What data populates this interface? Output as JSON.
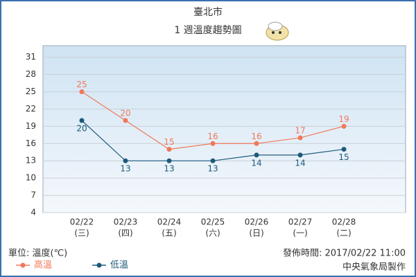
{
  "chart_data": {
    "type": "line",
    "title": "臺北市",
    "subtitle": "1 週溫度趨勢圖",
    "categories": [
      "02/22",
      "02/23",
      "02/24",
      "02/25",
      "02/26",
      "02/27",
      "02/28"
    ],
    "weekdays": [
      "(三)",
      "(四)",
      "(五)",
      "(六)",
      "(日)",
      "(一)",
      "(二)"
    ],
    "series": [
      {
        "name": "高溫",
        "color": "#f07858",
        "values": [
          25,
          20,
          15,
          16,
          16,
          17,
          19
        ]
      },
      {
        "name": "低溫",
        "color": "#1d5a7a",
        "values": [
          20,
          13,
          13,
          13,
          14,
          14,
          15
        ]
      }
    ],
    "ylim": [
      4,
      33
    ],
    "yticks": [
      4,
      7,
      10,
      13,
      16,
      19,
      22,
      25,
      28,
      31
    ],
    "grid": true,
    "unit": "單位: 溫度(℃)",
    "published": "發佈時間: 2017/02/22 11:00",
    "credit": "中央氣象局製作"
  }
}
